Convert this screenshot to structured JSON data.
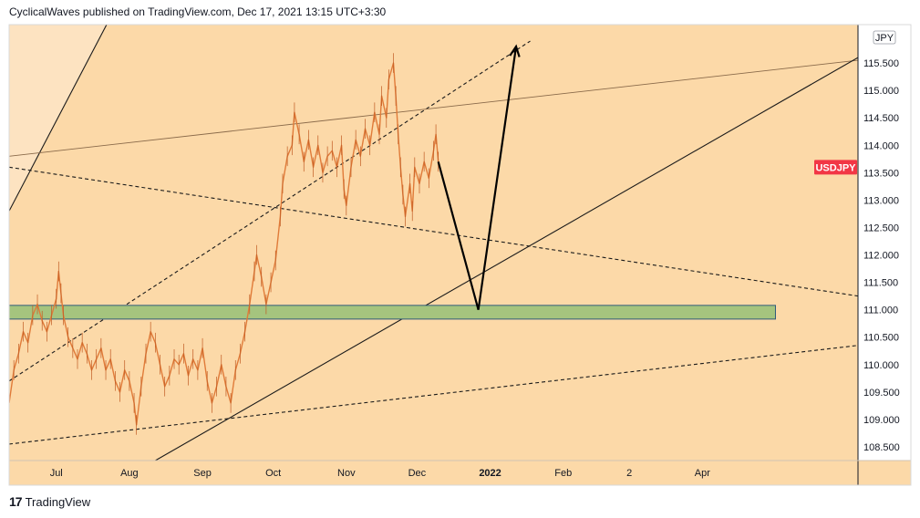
{
  "header": {
    "text": "CyclicalWaves published on TradingView.com, Dec 17, 2021 13:15 UTC+3:30"
  },
  "footer": {
    "logo": "17",
    "brand": "TradingView"
  },
  "chart_data": {
    "type": "line",
    "symbol_tag": "USDJPY",
    "symbol_tag_value": 113.6,
    "currency_label": "JPY",
    "y_ticks": [
      108.5,
      109.0,
      109.5,
      110.0,
      110.5,
      111.0,
      111.5,
      112.0,
      112.5,
      113.0,
      113.5,
      114.0,
      114.5,
      115.0,
      115.5
    ],
    "y_tick_labels": [
      "108.500",
      "109.000",
      "109.500",
      "110.000",
      "110.500",
      "111.000",
      "111.500",
      "112.000",
      "112.500",
      "113.000",
      "113.500",
      "114.000",
      "114.500",
      "115.000",
      "115.500"
    ],
    "ylim": [
      108.25,
      116.2
    ],
    "x_ticks": [
      "Jul",
      "Aug",
      "Sep",
      "Oct",
      "Nov",
      "Dec",
      "2022",
      "Feb",
      "2",
      "Apr"
    ],
    "x_tick_positions_days": [
      55,
      86,
      117,
      147,
      178,
      208,
      239,
      270,
      298,
      329
    ],
    "xlim_days": [
      35,
      395
    ],
    "price_series_color": "#e07b39",
    "price_series": [
      [
        35,
        109.3
      ],
      [
        37,
        109.9
      ],
      [
        39,
        110.2
      ],
      [
        41,
        110.6
      ],
      [
        43,
        110.4
      ],
      [
        45,
        110.9
      ],
      [
        47,
        111.1
      ],
      [
        49,
        110.8
      ],
      [
        51,
        110.6
      ],
      [
        53,
        110.9
      ],
      [
        55,
        111.2
      ],
      [
        56,
        111.7
      ],
      [
        57,
        111.3
      ],
      [
        58,
        110.9
      ],
      [
        60,
        110.5
      ],
      [
        62,
        110.3
      ],
      [
        64,
        110.1
      ],
      [
        66,
        110.4
      ],
      [
        68,
        110.2
      ],
      [
        70,
        109.9
      ],
      [
        72,
        110.1
      ],
      [
        74,
        110.3
      ],
      [
        76,
        109.9
      ],
      [
        78,
        110.1
      ],
      [
        80,
        109.7
      ],
      [
        82,
        109.5
      ],
      [
        84,
        109.9
      ],
      [
        86,
        109.7
      ],
      [
        88,
        109.3
      ],
      [
        89,
        108.9
      ],
      [
        91,
        109.6
      ],
      [
        93,
        110.2
      ],
      [
        95,
        110.6
      ],
      [
        97,
        110.4
      ],
      [
        99,
        110.0
      ],
      [
        101,
        109.6
      ],
      [
        103,
        109.8
      ],
      [
        105,
        110.1
      ],
      [
        107,
        110.0
      ],
      [
        109,
        110.2
      ],
      [
        111,
        109.8
      ],
      [
        113,
        110.1
      ],
      [
        115,
        109.9
      ],
      [
        117,
        110.3
      ],
      [
        119,
        109.7
      ],
      [
        121,
        109.3
      ],
      [
        123,
        109.6
      ],
      [
        125,
        110.0
      ],
      [
        127,
        109.6
      ],
      [
        129,
        109.3
      ],
      [
        131,
        109.9
      ],
      [
        133,
        110.2
      ],
      [
        135,
        110.6
      ],
      [
        137,
        111.1
      ],
      [
        139,
        111.7
      ],
      [
        140,
        112.0
      ],
      [
        142,
        111.6
      ],
      [
        144,
        111.1
      ],
      [
        146,
        111.5
      ],
      [
        148,
        111.9
      ],
      [
        150,
        112.7
      ],
      [
        151,
        113.3
      ],
      [
        153,
        113.8
      ],
      [
        155,
        114.0
      ],
      [
        156,
        114.6
      ],
      [
        158,
        114.2
      ],
      [
        160,
        113.7
      ],
      [
        162,
        114.1
      ],
      [
        164,
        113.6
      ],
      [
        166,
        114.0
      ],
      [
        168,
        113.5
      ],
      [
        170,
        113.8
      ],
      [
        172,
        113.9
      ],
      [
        174,
        113.6
      ],
      [
        176,
        114.0
      ],
      [
        177,
        113.2
      ],
      [
        178,
        112.9
      ],
      [
        180,
        113.6
      ],
      [
        182,
        114.1
      ],
      [
        184,
        113.8
      ],
      [
        186,
        114.3
      ],
      [
        188,
        114.0
      ],
      [
        190,
        114.6
      ],
      [
        192,
        114.2
      ],
      [
        193,
        114.9
      ],
      [
        195,
        114.5
      ],
      [
        196,
        115.2
      ],
      [
        198,
        115.5
      ],
      [
        199,
        114.9
      ],
      [
        200,
        114.2
      ],
      [
        201,
        113.6
      ],
      [
        202,
        113.1
      ],
      [
        203,
        112.7
      ],
      [
        205,
        113.3
      ],
      [
        206,
        112.8
      ],
      [
        207,
        113.6
      ],
      [
        209,
        113.3
      ],
      [
        211,
        113.7
      ],
      [
        213,
        113.4
      ],
      [
        215,
        113.9
      ],
      [
        216,
        114.2
      ],
      [
        217,
        113.7
      ]
    ],
    "lines": [
      {
        "name": "",
        "style": "solid",
        "from": [
          35,
          112.8
        ],
        "to": [
          80,
          116.5
        ]
      },
      {
        "name": "",
        "style": "dashed",
        "from": [
          35,
          109.7
        ],
        "to": [
          256,
          115.9
        ]
      },
      {
        "name": "",
        "style": "solid",
        "from": [
          35,
          113.8
        ],
        "to": [
          395,
          115.55
        ]
      },
      {
        "name": "",
        "style": "dashed",
        "from": [
          35,
          113.6
        ],
        "to": [
          395,
          111.25
        ]
      },
      {
        "name": "",
        "style": "solid",
        "from": [
          97,
          108.25
        ],
        "to": [
          395,
          115.6
        ]
      },
      {
        "name": "",
        "style": "dashed",
        "from": [
          35,
          108.55
        ],
        "to": [
          395,
          110.35
        ]
      }
    ],
    "support_zone": {
      "start_day": 35,
      "end_day": 360,
      "top": 111.08,
      "bottom": 110.83,
      "color": "#a5c47e"
    },
    "projection_path": [
      [
        217,
        113.7
      ],
      [
        234,
        111.0
      ],
      [
        250,
        115.8
      ]
    ],
    "background_color": "#fcd9a8"
  }
}
